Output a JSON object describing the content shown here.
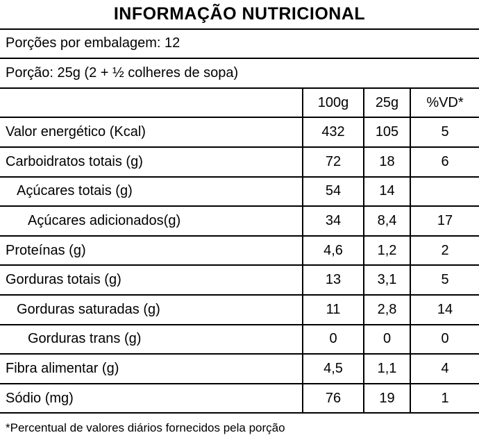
{
  "label": {
    "title": "INFORMAÇÃO NUTRICIONAL",
    "servings_per_package": "Porções por embalagem: 12",
    "portion": "Porção: 25g (2 + ½ colheres de sopa)",
    "footnote": "*Percentual de valores diários fornecidos pela porção"
  },
  "table": {
    "column_headers": [
      "100g",
      "25g",
      "%VD*"
    ],
    "rows": [
      {
        "label": "Valor energético (Kcal)",
        "per_100g": "432",
        "per_25g": "105",
        "vd_percent": "5"
      },
      {
        "label": "Carboidratos totais (g)",
        "per_100g": "72",
        "per_25g": "18",
        "vd_percent": "6"
      },
      {
        "label": "Açúcares totais (g)",
        "per_100g": "54",
        "per_25g": "14",
        "vd_percent": ""
      },
      {
        "label": "Açúcares adicionados(g)",
        "per_100g": "34",
        "per_25g": "8,4",
        "vd_percent": "17"
      },
      {
        "label": "Proteínas (g)",
        "per_100g": "4,6",
        "per_25g": "1,2",
        "vd_percent": "2"
      },
      {
        "label": "Gorduras totais (g)",
        "per_100g": "13",
        "per_25g": "3,1",
        "vd_percent": "5"
      },
      {
        "label": "Gorduras saturadas (g)",
        "per_100g": "11",
        "per_25g": "2,8",
        "vd_percent": "14"
      },
      {
        "label": "Gorduras trans (g)",
        "per_100g": "0",
        "per_25g": "0",
        "vd_percent": "0"
      },
      {
        "label": "Fibra alimentar (g)",
        "per_100g": "4,5",
        "per_25g": "1,1",
        "vd_percent": "4"
      },
      {
        "label": "Sódio (mg)",
        "per_100g": "76",
        "per_25g": "19",
        "vd_percent": "1"
      }
    ]
  },
  "colors": {
    "background": "#ffffff",
    "text": "#000000",
    "border": "#000000"
  }
}
